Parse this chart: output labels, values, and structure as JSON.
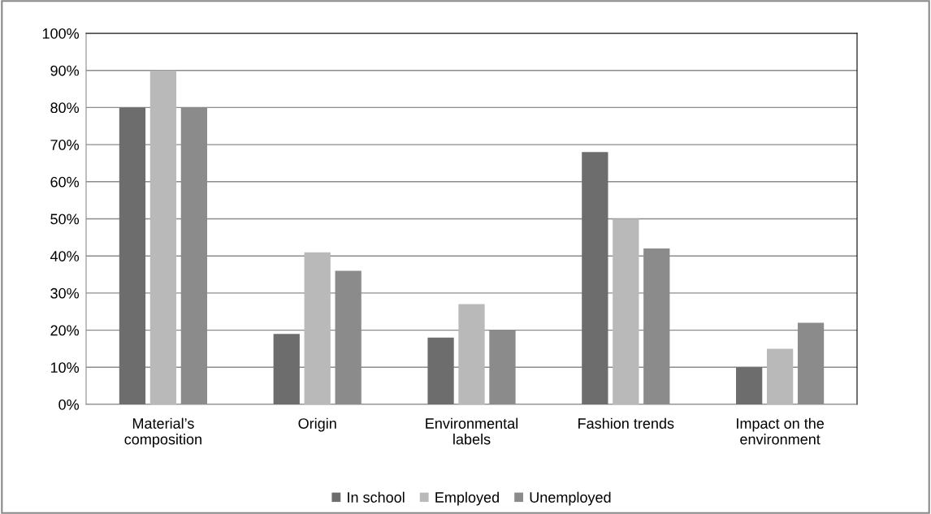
{
  "chart_data": {
    "type": "bar",
    "categories": [
      "Material’s\ncomposition",
      "Origin",
      "Environmental\nlabels",
      "Fashion trends",
      "Impact on the\nenvironment"
    ],
    "series": [
      {
        "name": "In school",
        "color": "#6d6d6d",
        "values": [
          80,
          19,
          18,
          68,
          10
        ]
      },
      {
        "name": "Employed",
        "color": "#b9b9b9",
        "values": [
          90,
          41,
          27,
          50,
          15
        ]
      },
      {
        "name": "Unemployed",
        "color": "#8b8b8b",
        "values": [
          80,
          36,
          20,
          42,
          22
        ]
      }
    ],
    "ylim": [
      0,
      100
    ],
    "yticks": [
      {
        "value": 0,
        "label": "0%"
      },
      {
        "value": 10,
        "label": "10%"
      },
      {
        "value": 20,
        "label": "20%"
      },
      {
        "value": 30,
        "label": "30%"
      },
      {
        "value": 40,
        "label": "40%"
      },
      {
        "value": 50,
        "label": "50%"
      },
      {
        "value": 60,
        "label": "60%"
      },
      {
        "value": 70,
        "label": "70%"
      },
      {
        "value": 80,
        "label": "80%"
      },
      {
        "value": 90,
        "label": "90%"
      },
      {
        "value": 100,
        "label": "100%"
      }
    ],
    "grid": "y",
    "legend": "bottom"
  }
}
